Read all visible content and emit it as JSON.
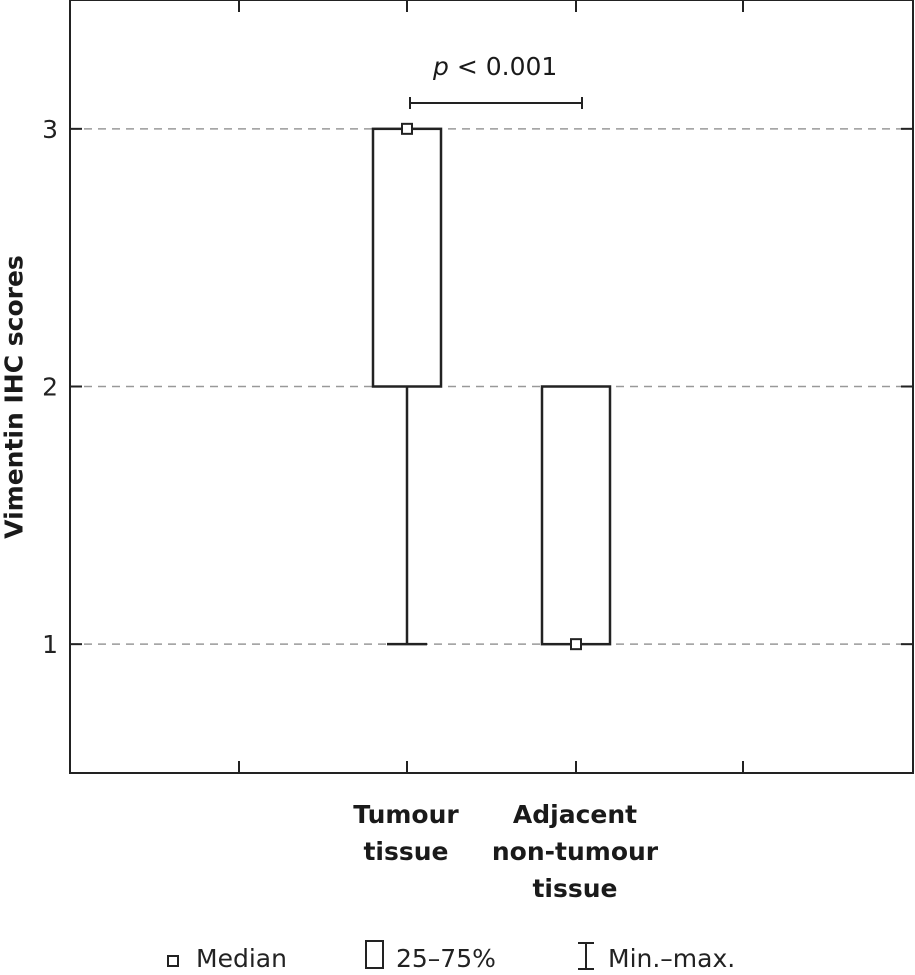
{
  "chart_data": {
    "type": "box",
    "ylabel": "Vimentin IHC scores",
    "ylim": [
      0.5,
      3.5
    ],
    "yticks": [
      1,
      2,
      3
    ],
    "grid": "horizontal dashed",
    "categories": [
      "Tumour tissue",
      "Adjacent non-tumour tissue"
    ],
    "category_lines": [
      [
        "Tumour",
        "tissue"
      ],
      [
        "Adjacent",
        "non-tumour",
        "tissue"
      ]
    ],
    "boxes": [
      {
        "category": "Tumour tissue",
        "median": 3,
        "q1": 2,
        "q3": 3,
        "min": 1,
        "max": 3
      },
      {
        "category": "Adjacent non-tumour tissue",
        "median": 1,
        "q1": 1,
        "q3": 2,
        "min": 1,
        "max": 2
      }
    ],
    "annotation": {
      "p_symbol": "p",
      "p_rest": " < 0.001"
    },
    "legend": [
      {
        "icon": "median-square-icon",
        "label": "Median"
      },
      {
        "icon": "box-icon",
        "label": "25–75%"
      },
      {
        "icon": "whisker-icon",
        "label": "Min.–max."
      }
    ]
  }
}
